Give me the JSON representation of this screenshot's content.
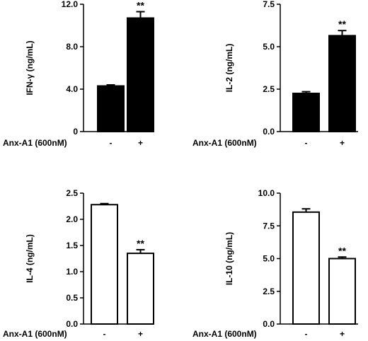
{
  "chart_data": [
    {
      "type": "bar",
      "categories": [
        "-",
        "+"
      ],
      "values": [
        4.3,
        10.7
      ],
      "errors": [
        0.1,
        0.6
      ],
      "significance": [
        "",
        "**"
      ],
      "ylabel": "IFN-γ (ng/mL)",
      "xlabel": "Anx-A1 (600nM)",
      "ylim": [
        0,
        12
      ],
      "yticks": [
        "0",
        "4.0",
        "8.0",
        "12.0"
      ],
      "ytick_values": [
        0,
        4,
        8,
        12
      ],
      "fill": "#000000"
    },
    {
      "type": "bar",
      "categories": [
        "-",
        "+"
      ],
      "values": [
        2.25,
        5.65
      ],
      "errors": [
        0.1,
        0.3
      ],
      "significance": [
        "",
        "**"
      ],
      "ylabel": "IL-2 (ng/mL)",
      "xlabel": "Anx-A1 (600nM)",
      "ylim": [
        0,
        7.5
      ],
      "yticks": [
        "0.0",
        "2.5",
        "5.0",
        "7.5"
      ],
      "ytick_values": [
        0,
        2.5,
        5,
        7.5
      ],
      "fill": "#000000"
    },
    {
      "type": "bar",
      "categories": [
        "-",
        "+"
      ],
      "values": [
        2.28,
        1.35
      ],
      "errors": [
        0.02,
        0.07
      ],
      "significance": [
        "",
        "**"
      ],
      "ylabel": "IL-4 (ng/mL)",
      "xlabel": "Anx-A1 (600nM)",
      "ylim": [
        0,
        2.5
      ],
      "yticks": [
        "0.0",
        "0.5",
        "1.0",
        "1.5",
        "2.0",
        "2.5"
      ],
      "ytick_values": [
        0,
        0.5,
        1,
        1.5,
        2,
        2.5
      ],
      "fill": "#ffffff"
    },
    {
      "type": "bar",
      "categories": [
        "-",
        "+"
      ],
      "values": [
        8.55,
        5.0
      ],
      "errors": [
        0.25,
        0.12
      ],
      "significance": [
        "",
        "**"
      ],
      "ylabel": "IL-10 (ng/mL)",
      "xlabel": "Anx-A1 (600nM)",
      "ylim": [
        0,
        10
      ],
      "yticks": [
        "0.0",
        "2.5",
        "5.0",
        "7.5",
        "10.0"
      ],
      "ytick_values": [
        0,
        2.5,
        5,
        7.5,
        10
      ],
      "fill": "#ffffff"
    }
  ]
}
